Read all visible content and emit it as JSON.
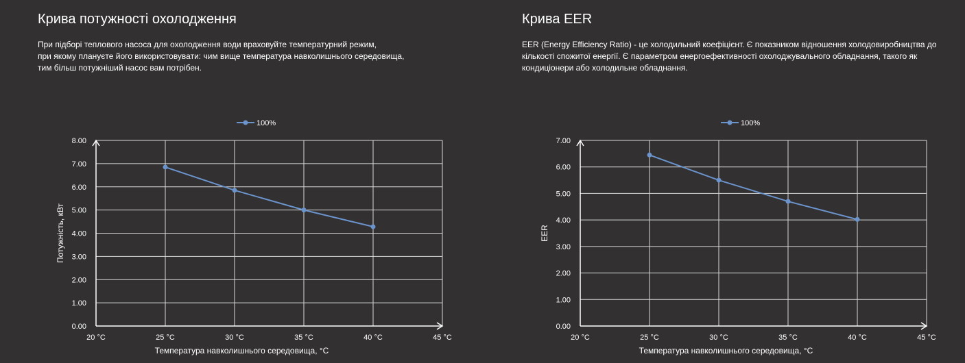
{
  "left_panel": {
    "title": "Крива потужності охолодження",
    "description_lines": [
      "При підборі теплового насоса для охолодження води враховуйте температурний режим,",
      "при якому плануєте його використовувати: чим вище температура навколишнього середовища,",
      "тим більш потужніший насос вам потрібен."
    ]
  },
  "right_panel": {
    "title": "Крива EER",
    "description_lines": [
      "EER (Energy Efficiency Ratio) - це холодильний коефіцієнт. Є показником відношення холодовиробництва до",
      "кількості спожитої енергії. Є параметром енергоефективності охолоджувального обладнання, такого як",
      "кондиціонери або холодильне обладнання."
    ]
  },
  "colors": {
    "background": "#323031",
    "series": "#6b93cc",
    "grid": "#d9d9d9",
    "text": "#ffffff"
  },
  "chart_data": [
    {
      "type": "line",
      "xlabel": "Температура навколишнього середовища, °C",
      "ylabel": "Потужність, кВт",
      "x_ticks": [
        "20 °C",
        "25 °C",
        "30 °C",
        "35 °C",
        "40 °C",
        "45 °C"
      ],
      "y_ticks": [
        "0.00",
        "1.00",
        "2.00",
        "3.00",
        "4.00",
        "5.00",
        "6.00",
        "7.00",
        "8.00"
      ],
      "xlim": [
        20,
        45
      ],
      "ylim": [
        0,
        8
      ],
      "grid": true,
      "legend_position": "top",
      "series": [
        {
          "name": "100%",
          "x": [
            25,
            30,
            35,
            40
          ],
          "y": [
            6.85,
            5.85,
            5.0,
            4.28
          ]
        }
      ]
    },
    {
      "type": "line",
      "xlabel": "Температура навколишнього середовища, °C",
      "ylabel": "EER",
      "x_ticks": [
        "20 °C",
        "25 °C",
        "30 °C",
        "35 °C",
        "40 °C",
        "45 °C"
      ],
      "y_ticks": [
        "0.00",
        "1.00",
        "2.00",
        "3.00",
        "4.00",
        "5.00",
        "6.00",
        "7.00"
      ],
      "xlim": [
        20,
        45
      ],
      "ylim": [
        0,
        7
      ],
      "grid": true,
      "legend_position": "top",
      "series": [
        {
          "name": "100%",
          "x": [
            25,
            30,
            35,
            40
          ],
          "y": [
            6.45,
            5.5,
            4.7,
            4.02
          ]
        }
      ]
    }
  ]
}
